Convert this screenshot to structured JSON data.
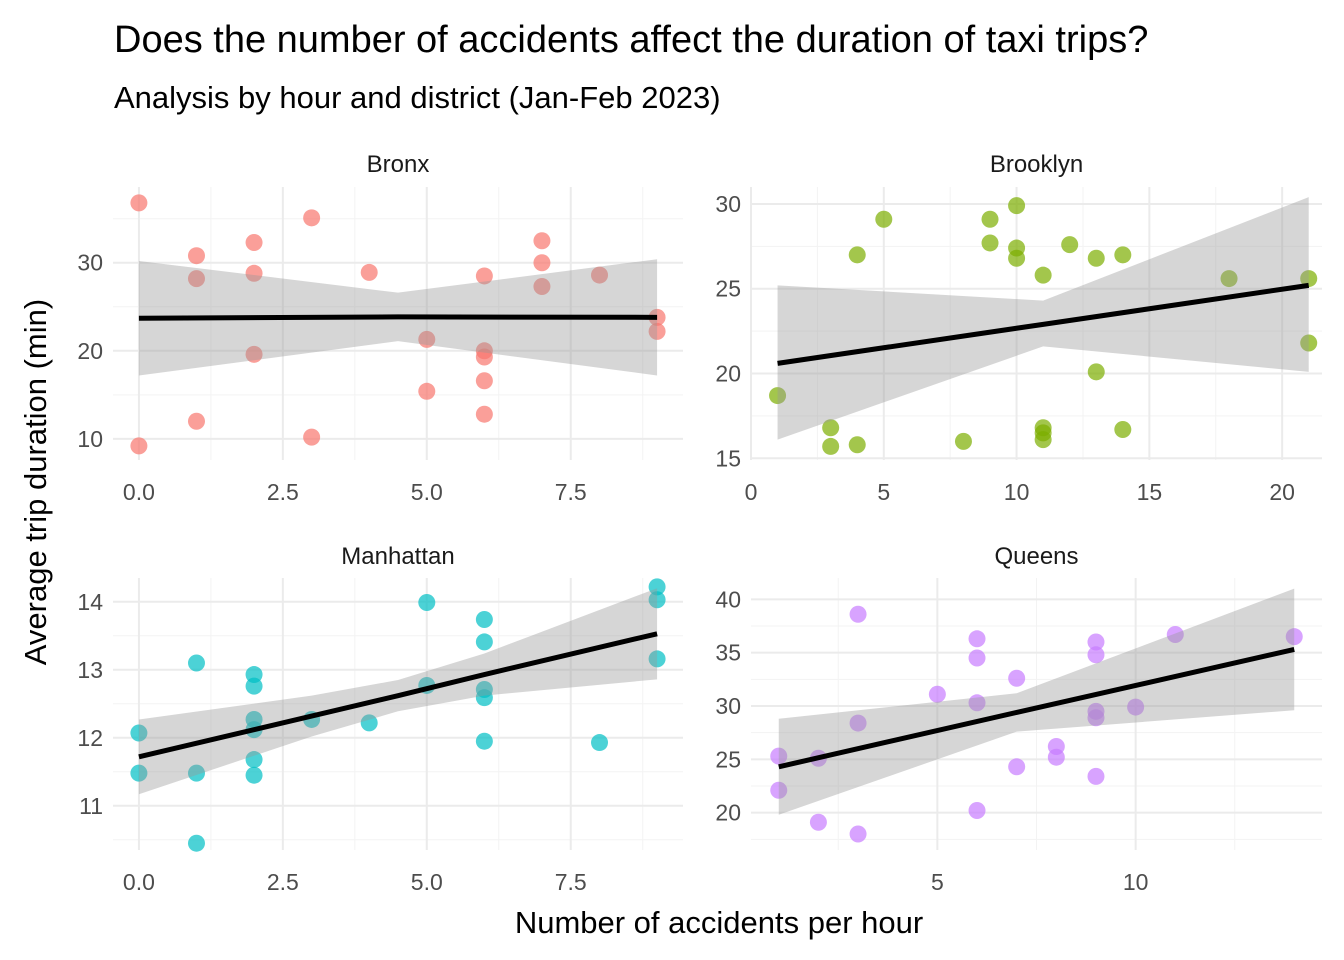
{
  "title": "Does the number of accidents affect the duration of taxi trips?",
  "subtitle": "Analysis by hour and district (Jan-Feb 2023)",
  "chart_data": {
    "type": "scatter",
    "facet_layout": "2x2",
    "xlabel": "Number of accidents per hour",
    "ylabel": "Average trip duration (min)",
    "grid": true,
    "smooth": "linear fit with confidence band",
    "panels": [
      {
        "name": "Bronx",
        "color": "#F8766D",
        "xlim": [
          -0.45,
          9.45
        ],
        "ylim": [
          7.6,
          38.6
        ],
        "xticks": [
          0,
          2.5,
          5,
          7.5
        ],
        "xtick_labels": [
          "0.0",
          "2.5",
          "5.0",
          "7.5"
        ],
        "yticks": [
          10,
          20,
          30
        ],
        "ytick_labels": [
          "10",
          "20",
          "30"
        ],
        "points": [
          [
            0,
            36.8
          ],
          [
            0,
            9.2
          ],
          [
            1,
            30.8
          ],
          [
            1,
            28.2
          ],
          [
            1,
            12.0
          ],
          [
            2,
            32.3
          ],
          [
            2,
            28.8
          ],
          [
            2,
            19.6
          ],
          [
            3,
            35.1
          ],
          [
            3,
            10.2
          ],
          [
            4,
            28.9
          ],
          [
            5,
            21.3
          ],
          [
            5,
            15.4
          ],
          [
            6,
            28.5
          ],
          [
            6,
            20.0
          ],
          [
            6,
            19.3
          ],
          [
            6,
            16.6
          ],
          [
            6,
            12.8
          ],
          [
            7,
            32.5
          ],
          [
            7,
            30.0
          ],
          [
            7,
            27.3
          ],
          [
            8,
            28.6
          ],
          [
            9,
            23.8
          ],
          [
            9,
            22.2
          ]
        ],
        "fit": {
          "x": [
            0,
            4.5,
            9
          ],
          "y": [
            23.7,
            23.85,
            23.8
          ],
          "lower": [
            17.2,
            21.1,
            17.2
          ],
          "upper": [
            30.2,
            26.6,
            30.4
          ]
        }
      },
      {
        "name": "Brooklyn",
        "color": "#7CAE00",
        "xlim": [
          0,
          21.5
        ],
        "ylim": [
          14.9,
          31
        ],
        "xticks": [
          0,
          5,
          10,
          15,
          20
        ],
        "xtick_labels": [
          "0",
          "5",
          "10",
          "15",
          "20"
        ],
        "yticks": [
          15,
          20,
          25,
          30
        ],
        "ytick_labels": [
          "15",
          "20",
          "25",
          "30"
        ],
        "points": [
          [
            1,
            18.7
          ],
          [
            3,
            16.8
          ],
          [
            3,
            15.7
          ],
          [
            4,
            27.0
          ],
          [
            4,
            15.8
          ],
          [
            5,
            29.1
          ],
          [
            8,
            16.0
          ],
          [
            9,
            29.1
          ],
          [
            9,
            27.7
          ],
          [
            10,
            29.9
          ],
          [
            10,
            27.4
          ],
          [
            10,
            26.8
          ],
          [
            11,
            25.8
          ],
          [
            11,
            16.8
          ],
          [
            11,
            16.5
          ],
          [
            11,
            16.1
          ],
          [
            12,
            27.6
          ],
          [
            13,
            26.8
          ],
          [
            13,
            20.1
          ],
          [
            14,
            27.0
          ],
          [
            14,
            16.7
          ],
          [
            18,
            25.6
          ],
          [
            21,
            25.6
          ],
          [
            21,
            21.8
          ]
        ],
        "fit": {
          "x": [
            1,
            11,
            21
          ],
          "y": [
            20.6,
            22.9,
            25.2
          ],
          "lower": [
            16.1,
            21.6,
            20.1
          ],
          "upper": [
            25.2,
            24.3,
            30.4
          ]
        }
      },
      {
        "name": "Manhattan",
        "color": "#00BFC4",
        "xlim": [
          -0.45,
          9.45
        ],
        "ylim": [
          10.35,
          14.35
        ],
        "xticks": [
          0,
          2.5,
          5,
          7.5
        ],
        "xtick_labels": [
          "0.0",
          "2.5",
          "5.0",
          "7.5"
        ],
        "yticks": [
          11,
          12,
          13,
          14
        ],
        "ytick_labels": [
          "11",
          "12",
          "13",
          "14"
        ],
        "points": [
          [
            0,
            12.07
          ],
          [
            0,
            11.48
          ],
          [
            1,
            13.1
          ],
          [
            1,
            11.48
          ],
          [
            1,
            10.45
          ],
          [
            2,
            12.93
          ],
          [
            2,
            12.76
          ],
          [
            2,
            12.27
          ],
          [
            2,
            12.12
          ],
          [
            2,
            11.68
          ],
          [
            2,
            11.45
          ],
          [
            3,
            12.27
          ],
          [
            4,
            12.22
          ],
          [
            5,
            13.99
          ],
          [
            5,
            12.77
          ],
          [
            6,
            13.74
          ],
          [
            6,
            13.41
          ],
          [
            6,
            12.71
          ],
          [
            6,
            12.59
          ],
          [
            6,
            11.95
          ],
          [
            8,
            11.93
          ],
          [
            9,
            14.22
          ],
          [
            9,
            14.03
          ],
          [
            9,
            13.16
          ]
        ],
        "fit": {
          "x": [
            0,
            3,
            4.5,
            6,
            9
          ],
          "y": [
            11.72,
            12.32,
            12.62,
            12.93,
            13.53
          ],
          "lower": [
            11.17,
            12.02,
            12.39,
            12.62,
            12.86
          ],
          "upper": [
            12.27,
            12.62,
            12.85,
            13.24,
            14.2
          ]
        }
      },
      {
        "name": "Queens",
        "color": "#C77CFF",
        "xlim": [
          0.3,
          14.7
        ],
        "ylim": [
          16.5,
          42
        ],
        "xticks": [
          5,
          10
        ],
        "xtick_labels": [
          "5",
          "10"
        ],
        "yticks": [
          20,
          25,
          30,
          35,
          40
        ],
        "ytick_labels": [
          "20",
          "25",
          "30",
          "35",
          "40"
        ],
        "points": [
          [
            1,
            25.3
          ],
          [
            1,
            22.1
          ],
          [
            2,
            25.1
          ],
          [
            2,
            19.1
          ],
          [
            3,
            38.6
          ],
          [
            3,
            28.4
          ],
          [
            3,
            18.0
          ],
          [
            5,
            31.1
          ],
          [
            6,
            36.3
          ],
          [
            6,
            34.5
          ],
          [
            6,
            30.3
          ],
          [
            6,
            20.2
          ],
          [
            7,
            32.6
          ],
          [
            7,
            24.3
          ],
          [
            8,
            26.2
          ],
          [
            8,
            25.2
          ],
          [
            9,
            36.0
          ],
          [
            9,
            34.8
          ],
          [
            9,
            29.5
          ],
          [
            9,
            28.9
          ],
          [
            9,
            23.4
          ],
          [
            10,
            29.9
          ],
          [
            11,
            36.7
          ],
          [
            14,
            36.5
          ]
        ],
        "fit": {
          "x": [
            1,
            7,
            14
          ],
          "y": [
            24.3,
            29.4,
            35.3
          ],
          "lower": [
            19.8,
            27.6,
            29.6
          ],
          "upper": [
            28.8,
            31.2,
            41.0
          ]
        }
      }
    ]
  }
}
